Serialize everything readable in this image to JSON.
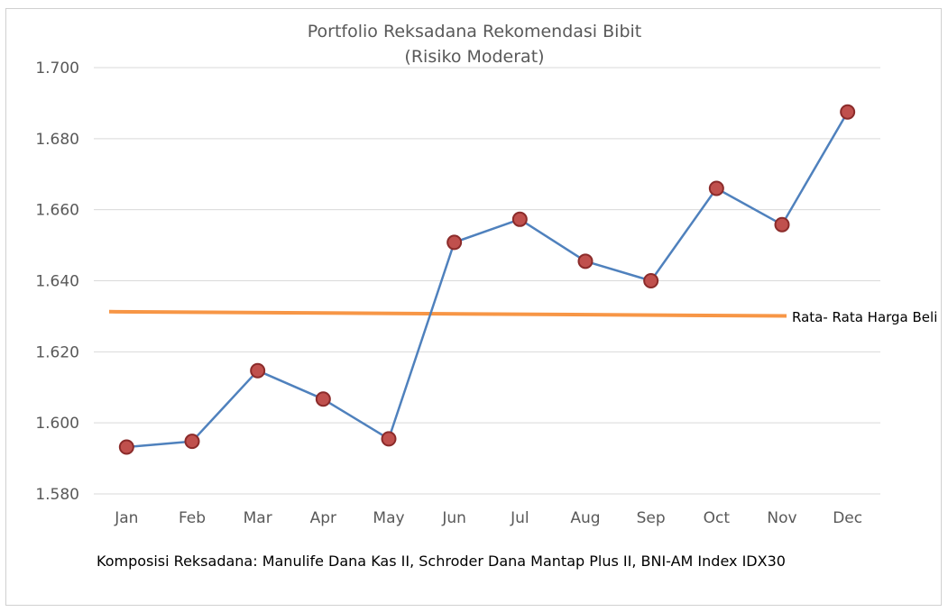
{
  "chart_data": {
    "type": "line",
    "title": "Portfolio Reksadana Rekomendasi Bibit",
    "subtitle": "(Risiko Moderat)",
    "xlabel": "",
    "ylabel": "",
    "categories": [
      "Jan",
      "Feb",
      "Mar",
      "Apr",
      "May",
      "Jun",
      "Jul",
      "Aug",
      "Sep",
      "Oct",
      "Nov",
      "Dec"
    ],
    "ylim": [
      1.58,
      1.7
    ],
    "yticks": [
      1.58,
      1.6,
      1.62,
      1.64,
      1.66,
      1.68,
      1.7
    ],
    "ytick_labels": [
      "1.580",
      "1.600",
      "1.620",
      "1.640",
      "1.660",
      "1.680",
      "1.700"
    ],
    "grid": true,
    "series": [
      {
        "values": [
          1.5932,
          1.5948,
          1.6147,
          1.6067,
          1.5955,
          1.6508,
          1.6573,
          1.6455,
          1.64,
          1.666,
          1.6558,
          1.6875
        ],
        "color": "#4f81bd",
        "marker_color": "#c0504d",
        "marker_edge": "#8b2b2a"
      }
    ],
    "reference_line": {
      "label": "Rata- Rata Harga Beli",
      "y_start": 1.6313,
      "y_end": 1.6301,
      "color": "#f79646"
    },
    "footnote": "Komposisi Reksadana: Manulife Dana Kas II, Schroder Dana Mantap Plus II, BNI-AM Index IDX30"
  }
}
